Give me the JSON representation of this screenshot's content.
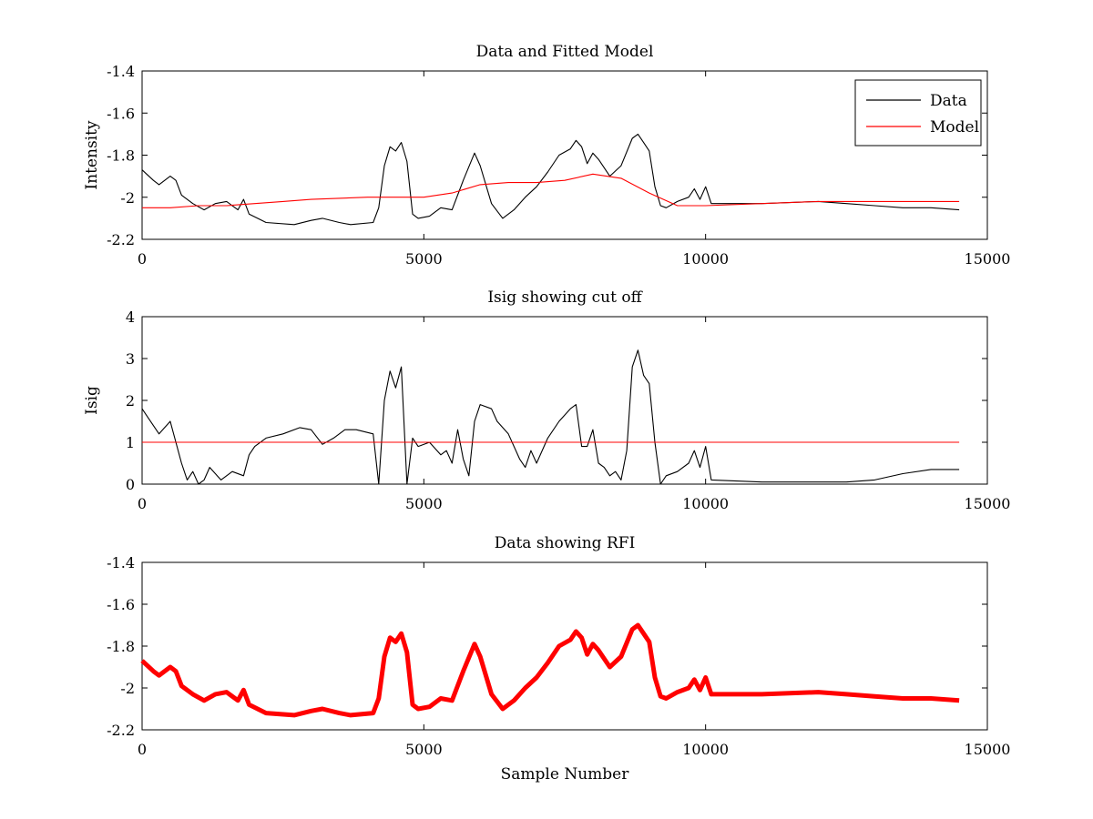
{
  "chart_data": [
    {
      "type": "line",
      "title": "Data and Fitted Model",
      "xlabel": "",
      "ylabel": "Intensity",
      "xlim": [
        0,
        15000
      ],
      "ylim": [
        -2.2,
        -1.4
      ],
      "xticks": [
        0,
        5000,
        10000,
        15000
      ],
      "yticks": [
        -2.2,
        -2.0,
        -1.8,
        -1.6,
        -1.4
      ],
      "xtick_labels": [
        "0",
        "5000",
        "10000",
        "15000"
      ],
      "ytick_labels": [
        "-2.2",
        "-2",
        "-1.8",
        "-1.6",
        "-1.4"
      ],
      "grid": false,
      "legend": {
        "placement": "top-right"
      },
      "series": [
        {
          "name": "Data",
          "color": "#000000",
          "x": [
            0,
            200,
            300,
            500,
            600,
            700,
            900,
            1100,
            1300,
            1500,
            1700,
            1800,
            1900,
            2200,
            2700,
            3000,
            3200,
            3500,
            3700,
            4100,
            4200,
            4300,
            4400,
            4500,
            4600,
            4700,
            4800,
            4900,
            5100,
            5300,
            5500,
            5700,
            5900,
            6000,
            6200,
            6400,
            6600,
            6800,
            7000,
            7200,
            7400,
            7600,
            7700,
            7800,
            7900,
            8000,
            8100,
            8300,
            8500,
            8700,
            8800,
            8900,
            9000,
            9100,
            9200,
            9300,
            9500,
            9700,
            9800,
            9900,
            10000,
            10100,
            11000,
            12000,
            12500,
            13000,
            13500,
            14000,
            14500
          ],
          "y": [
            -1.87,
            -1.92,
            -1.94,
            -1.9,
            -1.92,
            -1.99,
            -2.03,
            -2.06,
            -2.03,
            -2.02,
            -2.06,
            -2.01,
            -2.08,
            -2.12,
            -2.13,
            -2.11,
            -2.1,
            -2.12,
            -2.13,
            -2.12,
            -2.05,
            -1.85,
            -1.76,
            -1.78,
            -1.74,
            -1.83,
            -2.08,
            -2.1,
            -2.09,
            -2.05,
            -2.06,
            -1.92,
            -1.79,
            -1.85,
            -2.03,
            -2.1,
            -2.06,
            -2.0,
            -1.95,
            -1.88,
            -1.8,
            -1.77,
            -1.73,
            -1.76,
            -1.84,
            -1.79,
            -1.82,
            -1.9,
            -1.85,
            -1.72,
            -1.7,
            -1.74,
            -1.78,
            -1.95,
            -2.04,
            -2.05,
            -2.02,
            -2.0,
            -1.96,
            -2.01,
            -1.95,
            -2.03,
            -2.03,
            -2.02,
            -2.03,
            -2.04,
            -2.05,
            -2.05,
            -2.06
          ]
        },
        {
          "name": "Model",
          "color": "#ff0000",
          "x": [
            0,
            500,
            1000,
            1500,
            2000,
            2500,
            3000,
            4000,
            5000,
            5500,
            6000,
            6500,
            7000,
            7500,
            8000,
            8500,
            9000,
            9500,
            10000,
            11000,
            12000,
            13000,
            14500
          ],
          "y": [
            -2.05,
            -2.05,
            -2.04,
            -2.04,
            -2.03,
            -2.02,
            -2.01,
            -2.0,
            -2.0,
            -1.98,
            -1.94,
            -1.93,
            -1.93,
            -1.92,
            -1.89,
            -1.91,
            -1.98,
            -2.04,
            -2.04,
            -2.03,
            -2.02,
            -2.02,
            -2.02
          ]
        }
      ]
    },
    {
      "type": "line",
      "title": "Isig showing cut off",
      "xlabel": "",
      "ylabel": "Isig",
      "xlim": [
        0,
        15000
      ],
      "ylim": [
        0,
        4
      ],
      "xticks": [
        0,
        5000,
        10000,
        15000
      ],
      "yticks": [
        0,
        1,
        2,
        3,
        4
      ],
      "xtick_labels": [
        "0",
        "5000",
        "10000",
        "15000"
      ],
      "ytick_labels": [
        "0",
        "1",
        "2",
        "3",
        "4"
      ],
      "grid": false,
      "series": [
        {
          "color": "#000000",
          "x": [
            0,
            100,
            300,
            500,
            700,
            800,
            900,
            1000,
            1100,
            1200,
            1400,
            1600,
            1800,
            1900,
            2000,
            2200,
            2500,
            2800,
            3000,
            3200,
            3400,
            3600,
            3800,
            4100,
            4200,
            4300,
            4400,
            4500,
            4600,
            4700,
            4800,
            4900,
            5100,
            5300,
            5400,
            5500,
            5600,
            5700,
            5800,
            5900,
            6000,
            6200,
            6300,
            6500,
            6700,
            6800,
            6900,
            7000,
            7200,
            7400,
            7600,
            7700,
            7800,
            7900,
            8000,
            8100,
            8200,
            8300,
            8400,
            8500,
            8600,
            8700,
            8800,
            8900,
            9000,
            9100,
            9200,
            9300,
            9500,
            9700,
            9800,
            9900,
            10000,
            10100,
            11000,
            12000,
            12500,
            13000,
            13500,
            14000,
            14500
          ],
          "y": [
            1.8,
            1.6,
            1.2,
            1.5,
            0.5,
            0.1,
            0.3,
            0.0,
            0.1,
            0.4,
            0.1,
            0.3,
            0.2,
            0.7,
            0.9,
            1.1,
            1.2,
            1.35,
            1.3,
            0.95,
            1.1,
            1.3,
            1.3,
            1.2,
            0.0,
            2.0,
            2.7,
            2.3,
            2.8,
            0.0,
            1.1,
            0.9,
            1.0,
            0.7,
            0.8,
            0.5,
            1.3,
            0.6,
            0.2,
            1.5,
            1.9,
            1.8,
            1.5,
            1.2,
            0.6,
            0.4,
            0.8,
            0.5,
            1.1,
            1.5,
            1.8,
            1.9,
            0.9,
            0.9,
            1.3,
            0.5,
            0.4,
            0.2,
            0.3,
            0.1,
            0.8,
            2.8,
            3.2,
            2.6,
            2.4,
            1.0,
            0.0,
            0.2,
            0.3,
            0.5,
            0.8,
            0.4,
            0.9,
            0.1,
            0.05,
            0.05,
            0.05,
            0.1,
            0.25,
            0.35,
            0.35
          ]
        },
        {
          "color": "#ff0000",
          "x": [
            0,
            14500
          ],
          "y": [
            1,
            1
          ]
        }
      ]
    },
    {
      "type": "line",
      "title": "Data showing RFI",
      "xlabel": "Sample Number",
      "ylabel": "",
      "xlim": [
        0,
        15000
      ],
      "ylim": [
        -2.2,
        -1.4
      ],
      "xticks": [
        0,
        5000,
        10000,
        15000
      ],
      "yticks": [
        -2.2,
        -2.0,
        -1.8,
        -1.6,
        -1.4
      ],
      "xtick_labels": [
        "0",
        "5000",
        "10000",
        "15000"
      ],
      "ytick_labels": [
        "-2.2",
        "-2",
        "-1.8",
        "-1.6",
        "-1.4"
      ],
      "grid": false,
      "series": [
        {
          "color": "#ff0000",
          "x": [
            0,
            200,
            300,
            500,
            600,
            700,
            900,
            1100,
            1300,
            1500,
            1700,
            1800,
            1900,
            2200,
            2700,
            3000,
            3200,
            3500,
            3700,
            4100,
            4200,
            4300,
            4400,
            4500,
            4600,
            4700,
            4800,
            4900,
            5100,
            5300,
            5500,
            5700,
            5900,
            6000,
            6200,
            6400,
            6600,
            6800,
            7000,
            7200,
            7400,
            7600,
            7700,
            7800,
            7900,
            8000,
            8100,
            8300,
            8500,
            8700,
            8800,
            8900,
            9000,
            9100,
            9200,
            9300,
            9500,
            9700,
            9800,
            9900,
            10000,
            10100,
            11000,
            12000,
            12500,
            13000,
            13500,
            14000,
            14500
          ],
          "y": [
            -1.87,
            -1.92,
            -1.94,
            -1.9,
            -1.92,
            -1.99,
            -2.03,
            -2.06,
            -2.03,
            -2.02,
            -2.06,
            -2.01,
            -2.08,
            -2.12,
            -2.13,
            -2.11,
            -2.1,
            -2.12,
            -2.13,
            -2.12,
            -2.05,
            -1.85,
            -1.76,
            -1.78,
            -1.74,
            -1.83,
            -2.08,
            -2.1,
            -2.09,
            -2.05,
            -2.06,
            -1.92,
            -1.79,
            -1.85,
            -2.03,
            -2.1,
            -2.06,
            -2.0,
            -1.95,
            -1.88,
            -1.8,
            -1.77,
            -1.73,
            -1.76,
            -1.84,
            -1.79,
            -1.82,
            -1.9,
            -1.85,
            -1.72,
            -1.7,
            -1.74,
            -1.78,
            -1.95,
            -2.04,
            -2.05,
            -2.02,
            -2.0,
            -1.96,
            -2.01,
            -1.95,
            -2.03,
            -2.03,
            -2.02,
            -2.03,
            -2.04,
            -2.05,
            -2.05,
            -2.06
          ]
        }
      ]
    }
  ]
}
